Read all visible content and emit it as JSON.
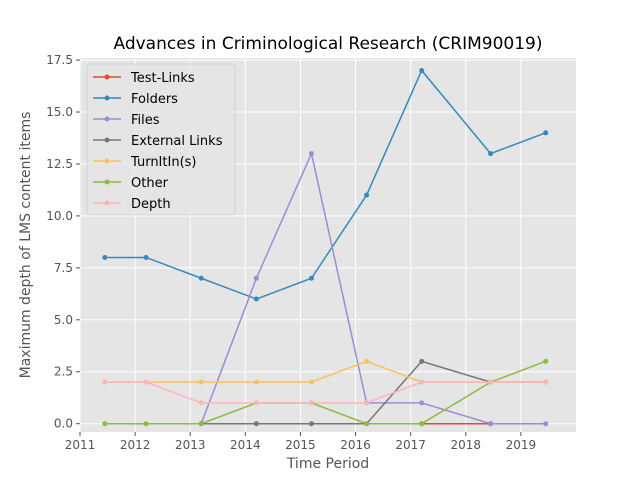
{
  "chart_data": {
    "type": "line",
    "title": "Advances in Criminological Research (CRIM90019)",
    "xlabel": "Time Period",
    "ylabel": "Maximum depth of LMS content items",
    "xlim": [
      2011,
      2020
    ],
    "ylim": [
      -0.4,
      17.6
    ],
    "xticks": [
      2011,
      2012,
      2013,
      2014,
      2015,
      2016,
      2017,
      2018,
      2019
    ],
    "xtick_labels": [
      "2011",
      "2012",
      "2013",
      "2014",
      "2015",
      "2016",
      "2017",
      "2018",
      "2019"
    ],
    "yticks": [
      0,
      2.5,
      5,
      7.5,
      10,
      12.5,
      15,
      17.5
    ],
    "ytick_labels": [
      "0.0",
      "2.5",
      "5.0",
      "7.5",
      "10.0",
      "12.5",
      "15.0",
      "17.5"
    ],
    "grid": true,
    "legend_position": "upper-left",
    "series": [
      {
        "name": "Test-Links",
        "color": "#e24a33",
        "points": [
          [
            2017.2,
            0
          ],
          [
            2018.45,
            0
          ]
        ]
      },
      {
        "name": "Folders",
        "color": "#348abd",
        "points": [
          [
            2011.45,
            8
          ],
          [
            2012.2,
            8
          ],
          [
            2013.2,
            7
          ],
          [
            2014.2,
            6
          ],
          [
            2015.2,
            7
          ],
          [
            2016.2,
            11
          ],
          [
            2017.2,
            17
          ],
          [
            2018.45,
            13
          ],
          [
            2019.45,
            14
          ]
        ]
      },
      {
        "name": "Files",
        "color": "#988ed5",
        "points": [
          [
            2013.2,
            0
          ],
          [
            2014.2,
            7
          ],
          [
            2015.2,
            13
          ],
          [
            2016.2,
            1
          ],
          [
            2017.2,
            1
          ],
          [
            2018.45,
            0
          ],
          [
            2019.45,
            0
          ]
        ]
      },
      {
        "name": "External Links",
        "color": "#777777",
        "points": [
          [
            2013.2,
            0
          ],
          [
            2014.2,
            0
          ],
          [
            2015.2,
            0
          ],
          [
            2016.2,
            0
          ],
          [
            2017.2,
            3
          ],
          [
            2018.45,
            2
          ],
          [
            2019.45,
            2
          ]
        ]
      },
      {
        "name": "TurnItIn(s)",
        "color": "#fbc15e",
        "points": [
          [
            2011.45,
            2
          ],
          [
            2012.2,
            2
          ],
          [
            2013.2,
            2
          ],
          [
            2014.2,
            2
          ],
          [
            2015.2,
            2
          ],
          [
            2016.2,
            3
          ],
          [
            2017.2,
            2
          ],
          [
            2018.45,
            2
          ],
          [
            2019.45,
            2
          ]
        ]
      },
      {
        "name": "Other",
        "color": "#8eba42",
        "points": [
          [
            2011.45,
            0
          ],
          [
            2012.2,
            0
          ],
          [
            2013.2,
            0
          ],
          [
            2014.2,
            1
          ],
          [
            2015.2,
            1
          ],
          [
            2016.2,
            0
          ],
          [
            2017.2,
            0
          ],
          [
            2018.45,
            2
          ],
          [
            2019.45,
            3
          ]
        ]
      },
      {
        "name": "Depth",
        "color": "#ffb5b8",
        "points": [
          [
            2011.45,
            2
          ],
          [
            2012.2,
            2
          ],
          [
            2013.2,
            1
          ],
          [
            2014.2,
            1
          ],
          [
            2015.2,
            1
          ],
          [
            2016.2,
            1
          ],
          [
            2017.2,
            2
          ],
          [
            2018.45,
            2
          ],
          [
            2019.45,
            2
          ]
        ]
      }
    ]
  }
}
